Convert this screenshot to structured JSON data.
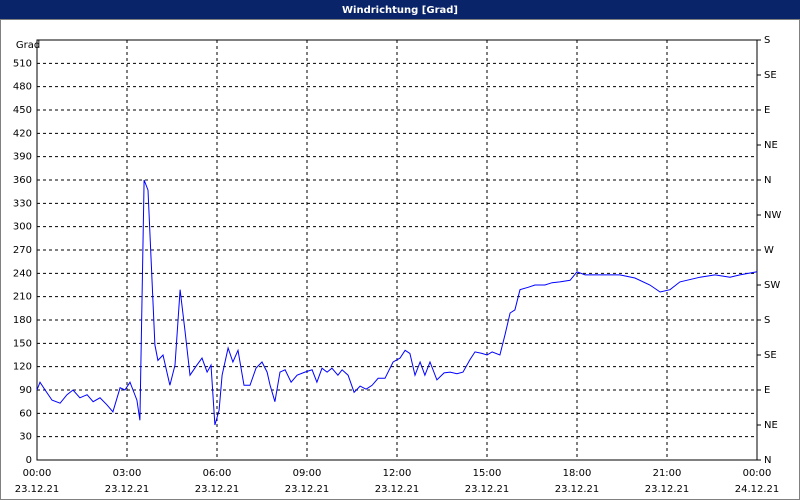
{
  "chart_data": {
    "type": "line",
    "title": "Windrichtung [Grad]",
    "y_label": "Grad",
    "x": [
      0,
      0.1,
      0.27,
      0.5,
      0.77,
      1,
      1.2,
      1.43,
      1.67,
      1.87,
      2.1,
      2.33,
      2.53,
      2.77,
      2.93,
      3.1,
      3.2,
      3.33,
      3.43,
      3.57,
      3.7,
      3.93,
      4.03,
      4.2,
      4.43,
      4.6,
      4.77,
      4.93,
      5.1,
      5.33,
      5.5,
      5.67,
      5.8,
      5.93,
      6.07,
      6.17,
      6.37,
      6.53,
      6.7,
      6.9,
      7.1,
      7.3,
      7.5,
      7.67,
      7.77,
      7.93,
      8.1,
      8.27,
      8.47,
      8.67,
      8.93,
      9.17,
      9.33,
      9.5,
      9.67,
      9.83,
      10.03,
      10.17,
      10.37,
      10.57,
      10.77,
      10.97,
      11.17,
      11.37,
      11.6,
      11.87,
      12.1,
      12.27,
      12.43,
      12.6,
      12.77,
      12.93,
      13.1,
      13.33,
      13.57,
      13.77,
      14,
      14.2,
      14.43,
      14.6,
      14.83,
      15,
      15.17,
      15.43,
      15.6,
      15.77,
      15.93,
      16.1,
      16.37,
      16.6,
      16.93,
      17.17,
      17.43,
      17.77,
      18,
      18.27,
      18.77,
      19.43,
      19.93,
      20.43,
      20.77,
      21.1,
      21.43,
      22.1,
      22.6,
      23.1,
      23.43,
      24
    ],
    "series": [
      {
        "name": "Windrichtung",
        "color": "#0000ff",
        "values": [
          90,
          100,
          90,
          77,
          73,
          84,
          90,
          80,
          84,
          75,
          80,
          71,
          62,
          93,
          90,
          100,
          90,
          77,
          51,
          360,
          347,
          148,
          128,
          135,
          96,
          122,
          219,
          167,
          109,
          122,
          131,
          113,
          122,
          45,
          64,
          109,
          144,
          126,
          141,
          96,
          96,
          118,
          126,
          113,
          96,
          75,
          113,
          116,
          100,
          109,
          113,
          116,
          100,
          118,
          113,
          118,
          109,
          116,
          109,
          87,
          95,
          91,
          96,
          105,
          105,
          126,
          131,
          141,
          137,
          109,
          126,
          109,
          126,
          103,
          112,
          113,
          111,
          113,
          129,
          139,
          137,
          135,
          139,
          135,
          161,
          189,
          193,
          219,
          222,
          225,
          225,
          228,
          229,
          231,
          242,
          238,
          238,
          238,
          234,
          225,
          216,
          219,
          229,
          235,
          238,
          235,
          238,
          242
        ]
      }
    ],
    "xlim": [
      0,
      24
    ],
    "xticks": [
      {
        "value": 0,
        "label": "00:00"
      },
      {
        "value": 3,
        "label": "03:00"
      },
      {
        "value": 6,
        "label": "06:00"
      },
      {
        "value": 9,
        "label": "09:00"
      },
      {
        "value": 12,
        "label": "12:00"
      },
      {
        "value": 15,
        "label": "15:00"
      },
      {
        "value": 18,
        "label": "18:00"
      },
      {
        "value": 21,
        "label": "21:00"
      },
      {
        "value": 24,
        "label": "00:00"
      }
    ],
    "xtick_dates": [
      "23.12.21",
      "23.12.21",
      "23.12.21",
      "23.12.21",
      "23.12.21",
      "23.12.21",
      "23.12.21",
      "23.12.21",
      "24.12.21"
    ],
    "ylim": [
      0,
      540
    ],
    "yticks": [
      0,
      30,
      60,
      90,
      120,
      150,
      180,
      210,
      240,
      270,
      300,
      330,
      360,
      390,
      420,
      450,
      480,
      510
    ],
    "y2lim": [
      0,
      540
    ],
    "y2ticks": [
      {
        "value": 0,
        "label": "N"
      },
      {
        "value": 45,
        "label": "NE"
      },
      {
        "value": 90,
        "label": "E"
      },
      {
        "value": 135,
        "label": "SE"
      },
      {
        "value": 180,
        "label": "S"
      },
      {
        "value": 225,
        "label": "SW"
      },
      {
        "value": 270,
        "label": "W"
      },
      {
        "value": 315,
        "label": "NW"
      },
      {
        "value": 360,
        "label": "N"
      },
      {
        "value": 405,
        "label": "NE"
      },
      {
        "value": 450,
        "label": "E"
      },
      {
        "value": 495,
        "label": "SE"
      },
      {
        "value": 540,
        "label": "S"
      }
    ],
    "grid": true
  }
}
